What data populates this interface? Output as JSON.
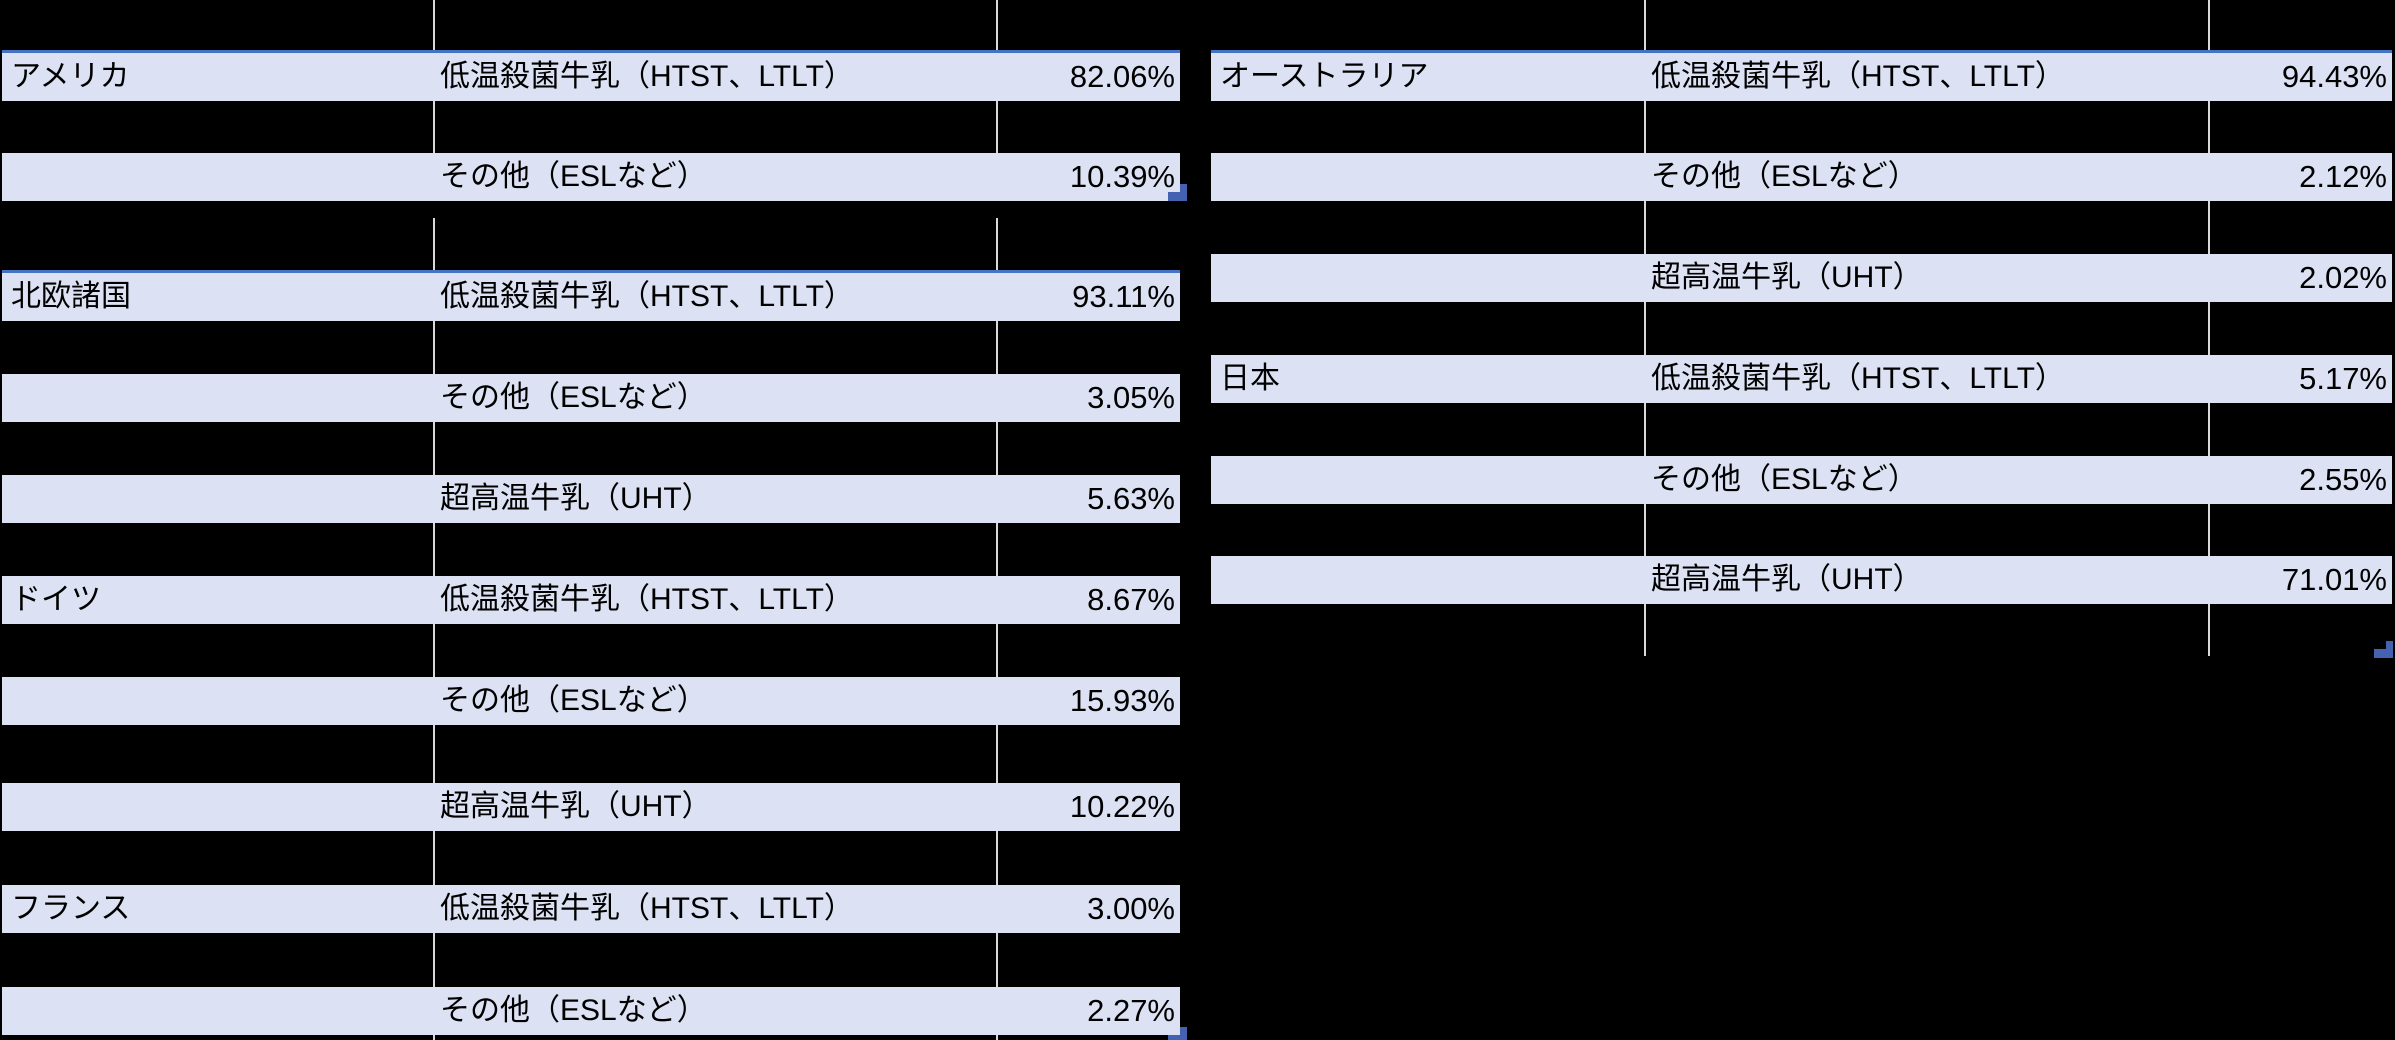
{
  "colors": {
    "background": "#000000",
    "row_fill": "#dce2f3",
    "text": "#000000",
    "selection_border": "#4472c4",
    "fill_handle": "#4462b0",
    "gridline": "#d9d9d9"
  },
  "left_table": {
    "rows": [
      {
        "country": "アメリカ",
        "category": "低温殺菌牛乳（HTST、LTLT）",
        "value": "82.06%",
        "selected": true,
        "fill_handle": false
      },
      {
        "country": "",
        "category": "その他（ESLなど）",
        "value": "10.39%",
        "selected": false,
        "fill_handle": true
      },
      {
        "country": "北欧諸国",
        "category": "低温殺菌牛乳（HTST、LTLT）",
        "value": "93.11%",
        "selected": true,
        "fill_handle": false
      },
      {
        "country": "",
        "category": "その他（ESLなど）",
        "value": "3.05%",
        "selected": false,
        "fill_handle": false
      },
      {
        "country": "",
        "category": "超高温牛乳（UHT）",
        "value": "5.63%",
        "selected": false,
        "fill_handle": false
      },
      {
        "country": "ドイツ",
        "category": "低温殺菌牛乳（HTST、LTLT）",
        "value": "8.67%",
        "selected": false,
        "fill_handle": false
      },
      {
        "country": "",
        "category": "その他（ESLなど）",
        "value": "15.93%",
        "selected": false,
        "fill_handle": false
      },
      {
        "country": "",
        "category": "超高温牛乳（UHT）",
        "value": "10.22%",
        "selected": false,
        "fill_handle": false
      },
      {
        "country": "フランス",
        "category": "低温殺菌牛乳（HTST、LTLT）",
        "value": "3.00%",
        "selected": false,
        "fill_handle": false
      },
      {
        "country": "",
        "category": "その他（ESLなど）",
        "value": "2.27%",
        "selected": false,
        "fill_handle": true
      }
    ]
  },
  "right_table": {
    "rows": [
      {
        "country": "オーストラリア",
        "category": "低温殺菌牛乳（HTST、LTLT）",
        "value": "94.43%",
        "selected": true,
        "fill_handle": false
      },
      {
        "country": "",
        "category": "その他（ESLなど）",
        "value": "2.12%",
        "selected": false,
        "fill_handle": false
      },
      {
        "country": "",
        "category": "超高温牛乳（UHT）",
        "value": "2.02%",
        "selected": false,
        "fill_handle": false
      },
      {
        "country": "日本",
        "category": "低温殺菌牛乳（HTST、LTLT）",
        "value": "5.17%",
        "selected": false,
        "fill_handle": false
      },
      {
        "country": "",
        "category": "その他（ESLなど）",
        "value": "2.55%",
        "selected": false,
        "fill_handle": false
      },
      {
        "country": "",
        "category": "超高温牛乳（UHT）",
        "value": "71.01%",
        "selected": false,
        "fill_handle": false
      }
    ],
    "fill_handle_below_last_row": true
  }
}
